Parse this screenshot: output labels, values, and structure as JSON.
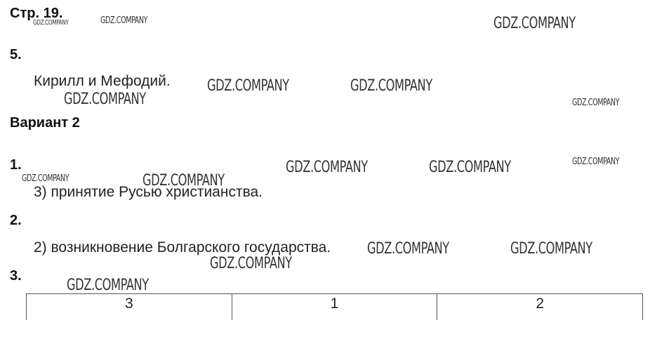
{
  "page": {
    "label": "Стр. 19."
  },
  "sections": {
    "q5": {
      "number": "5.",
      "answer": "Кирилл и Мефодий."
    },
    "variant": {
      "title": "Вариант 2"
    },
    "q1": {
      "number": "1.",
      "answer": "3) принятие Русью христианства."
    },
    "q2": {
      "number": "2.",
      "answer": "2) возникновение Болгарского государства."
    },
    "q3": {
      "number": "3.",
      "table": [
        "3",
        "1",
        "2"
      ]
    }
  },
  "watermark": {
    "text": "GDZ.COMPANY"
  }
}
